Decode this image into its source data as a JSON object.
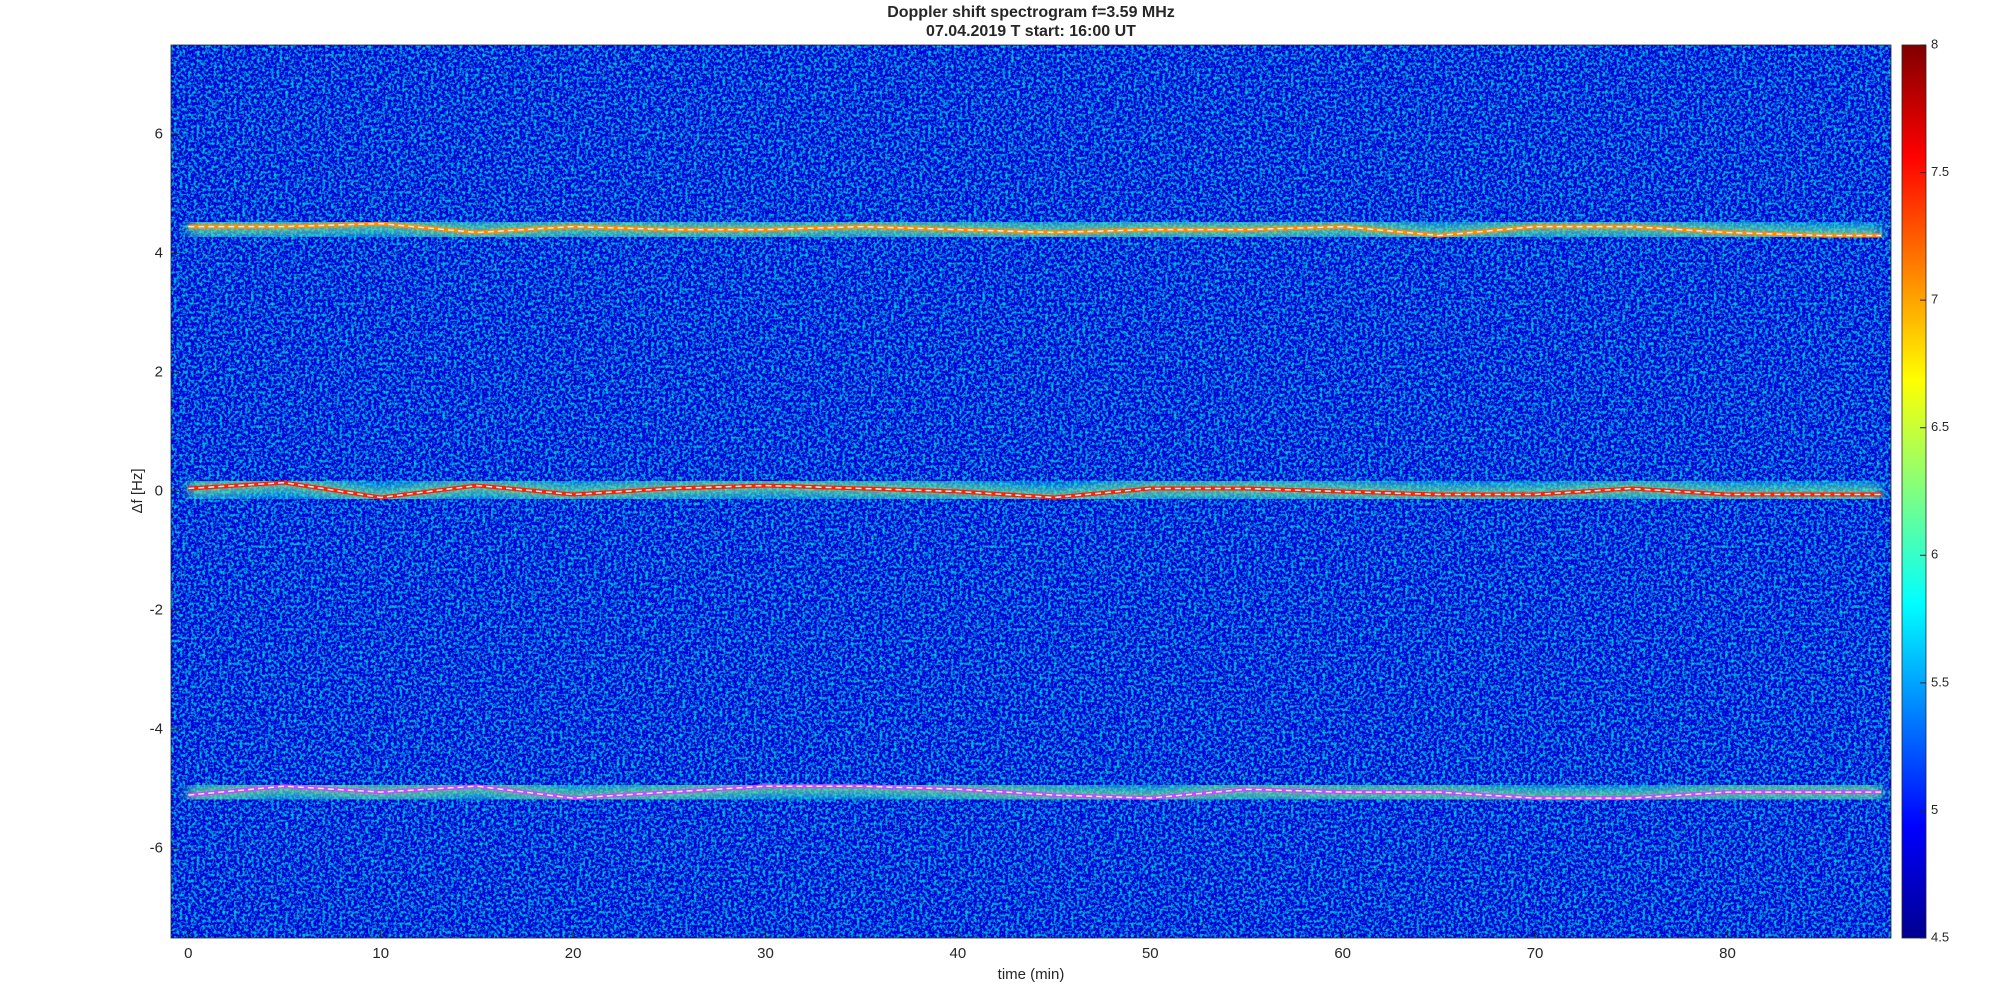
{
  "chart_data": {
    "type": "spectrogram",
    "title": "Doppler shift spectrogram f=3.59 MHz",
    "subtitle": "07.04.2019   T start: 16:00 UT",
    "xlabel": "time (min)",
    "ylabel": "Δf [Hz]",
    "xlim": [
      -0.9,
      88.5
    ],
    "ylim": [
      -7.5,
      7.5
    ],
    "xticks": [
      0,
      10,
      20,
      30,
      40,
      50,
      60,
      70,
      80
    ],
    "yticks": [
      -6,
      -4,
      -2,
      0,
      2,
      4,
      6
    ],
    "colormap": "jet",
    "clim": [
      4.5,
      8
    ],
    "cticks": [
      4.5,
      5,
      5.5,
      6,
      6.5,
      7,
      7.5,
      8
    ],
    "x": [
      0,
      5,
      10,
      15,
      20,
      25,
      30,
      35,
      40,
      45,
      50,
      55,
      60,
      65,
      70,
      75,
      80,
      85,
      88
    ],
    "series": [
      {
        "color": "#ff8c00",
        "values": [
          4.45,
          4.45,
          4.5,
          4.35,
          4.45,
          4.4,
          4.4,
          4.45,
          4.4,
          4.35,
          4.4,
          4.4,
          4.45,
          4.3,
          4.45,
          4.45,
          4.35,
          4.3,
          4.3
        ]
      },
      {
        "color": "#ff2000",
        "values": [
          0.05,
          0.15,
          -0.1,
          0.1,
          -0.05,
          0.05,
          0.1,
          0.05,
          0,
          -0.1,
          0.05,
          0.05,
          0,
          -0.05,
          -0.05,
          0.05,
          -0.05,
          -0.05,
          -0.05
        ]
      },
      {
        "color": "#c050ff",
        "values": [
          -5.1,
          -4.95,
          -5.05,
          -4.95,
          -5.15,
          -5.05,
          -4.95,
          -4.95,
          -5,
          -5.1,
          -5.15,
          -5,
          -5.05,
          -5.05,
          -5.15,
          -5.15,
          -5.05,
          -5.05,
          -5.05
        ]
      }
    ]
  }
}
